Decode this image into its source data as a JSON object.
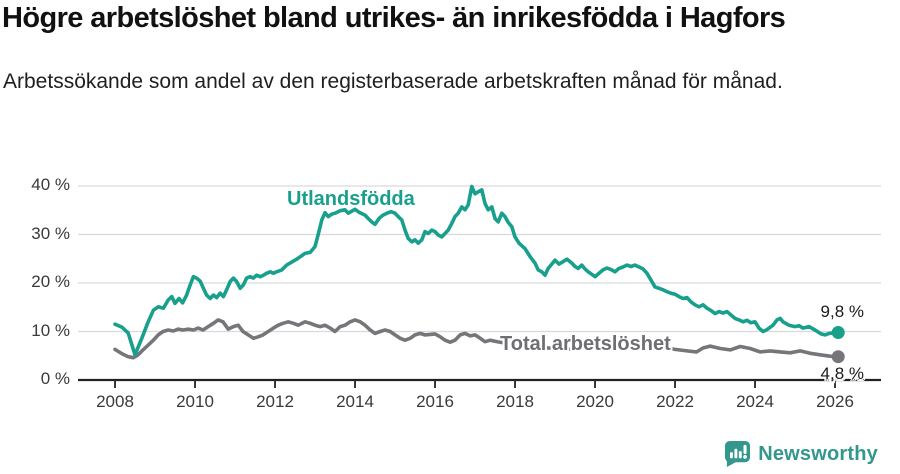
{
  "header": {
    "title": "Högre arbetslöshet bland utrikes- än inrikesfödda i Hagfors",
    "subtitle": "Arbetssökande som andel av den registerbaserade arbetskraften månad för månad."
  },
  "footer": {
    "brand": "Newsworthy"
  },
  "colors": {
    "teal": "#18A08D",
    "gray": "#76767A",
    "grid": "#D9D9D9",
    "axis": "#222222",
    "tick_text": "#3a3a3a",
    "logo_teal": "#33978E"
  },
  "chart_data": {
    "type": "line",
    "title": "Högre arbetslöshet bland utrikes- än inrikesfödda i Hagfors",
    "subtitle": "Arbetssökande som andel av den registerbaserade arbetskraften månad för månad.",
    "xlabel": "",
    "ylabel": "",
    "grid": "horizontal-only",
    "legend": "inline-series-labels",
    "xlim": [
      2007.9,
      2026.6
    ],
    "ylim": [
      0,
      41
    ],
    "x_tick_values": [
      2008,
      2010,
      2012,
      2014,
      2016,
      2018,
      2020,
      2022,
      2024,
      2026
    ],
    "x_tick_labels": [
      "2008",
      "2010",
      "2012",
      "2014",
      "2016",
      "2018",
      "2020",
      "2022",
      "2024",
      "2026"
    ],
    "y_tick_values": [
      0,
      10,
      20,
      30,
      40
    ],
    "y_tick_labels": [
      "0 %",
      "10 %",
      "20 %",
      "30 %",
      "40 %"
    ],
    "series": [
      {
        "name": "Utlandsfödda",
        "color": "#18A08D",
        "end_label": "9,8 %",
        "last_value": 9.8,
        "points": [
          [
            2008.0,
            11.5
          ],
          [
            2008.17,
            10.9
          ],
          [
            2008.33,
            9.7
          ],
          [
            2008.5,
            5.2
          ],
          [
            2008.67,
            8.6
          ],
          [
            2008.83,
            12.0
          ],
          [
            2008.96,
            14.4
          ],
          [
            2009.08,
            15.1
          ],
          [
            2009.21,
            14.8
          ],
          [
            2009.33,
            16.5
          ],
          [
            2009.42,
            17.2
          ],
          [
            2009.5,
            15.8
          ],
          [
            2009.6,
            16.8
          ],
          [
            2009.69,
            15.9
          ],
          [
            2009.79,
            17.5
          ],
          [
            2009.88,
            19.6
          ],
          [
            2009.96,
            21.3
          ],
          [
            2010.04,
            21.0
          ],
          [
            2010.13,
            20.4
          ],
          [
            2010.21,
            18.9
          ],
          [
            2010.29,
            17.5
          ],
          [
            2010.38,
            16.8
          ],
          [
            2010.46,
            17.5
          ],
          [
            2010.54,
            17.0
          ],
          [
            2010.63,
            17.9
          ],
          [
            2010.71,
            17.2
          ],
          [
            2010.79,
            18.6
          ],
          [
            2010.88,
            20.3
          ],
          [
            2010.96,
            21.0
          ],
          [
            2011.04,
            20.3
          ],
          [
            2011.13,
            18.9
          ],
          [
            2011.21,
            19.6
          ],
          [
            2011.29,
            21.0
          ],
          [
            2011.38,
            21.3
          ],
          [
            2011.46,
            21.0
          ],
          [
            2011.54,
            21.6
          ],
          [
            2011.63,
            21.3
          ],
          [
            2011.71,
            21.6
          ],
          [
            2011.79,
            22.0
          ],
          [
            2011.88,
            22.3
          ],
          [
            2011.96,
            22.0
          ],
          [
            2012.04,
            22.3
          ],
          [
            2012.17,
            22.7
          ],
          [
            2012.29,
            23.7
          ],
          [
            2012.42,
            24.3
          ],
          [
            2012.54,
            24.9
          ],
          [
            2012.63,
            25.4
          ],
          [
            2012.75,
            26.1
          ],
          [
            2012.88,
            26.3
          ],
          [
            2013.0,
            27.5
          ],
          [
            2013.08,
            30.0
          ],
          [
            2013.17,
            33.0
          ],
          [
            2013.25,
            34.5
          ],
          [
            2013.33,
            33.7
          ],
          [
            2013.42,
            34.2
          ],
          [
            2013.5,
            34.4
          ],
          [
            2013.63,
            34.9
          ],
          [
            2013.75,
            35.1
          ],
          [
            2013.83,
            34.4
          ],
          [
            2013.92,
            34.8
          ],
          [
            2014.0,
            35.2
          ],
          [
            2014.1,
            34.6
          ],
          [
            2014.25,
            34.0
          ],
          [
            2014.33,
            33.3
          ],
          [
            2014.42,
            32.6
          ],
          [
            2014.5,
            32.1
          ],
          [
            2014.6,
            33.3
          ],
          [
            2014.7,
            34.0
          ],
          [
            2014.8,
            34.4
          ],
          [
            2014.9,
            34.7
          ],
          [
            2015.0,
            34.4
          ],
          [
            2015.08,
            33.7
          ],
          [
            2015.17,
            33.0
          ],
          [
            2015.25,
            30.9
          ],
          [
            2015.33,
            29.2
          ],
          [
            2015.42,
            28.5
          ],
          [
            2015.5,
            28.9
          ],
          [
            2015.58,
            28.2
          ],
          [
            2015.67,
            28.9
          ],
          [
            2015.75,
            30.6
          ],
          [
            2015.83,
            30.2
          ],
          [
            2015.92,
            30.9
          ],
          [
            2016.0,
            30.6
          ],
          [
            2016.08,
            29.9
          ],
          [
            2016.17,
            29.5
          ],
          [
            2016.25,
            30.2
          ],
          [
            2016.33,
            30.9
          ],
          [
            2016.42,
            32.3
          ],
          [
            2016.5,
            33.7
          ],
          [
            2016.58,
            34.4
          ],
          [
            2016.67,
            35.7
          ],
          [
            2016.75,
            35.1
          ],
          [
            2016.83,
            36.1
          ],
          [
            2016.92,
            39.9
          ],
          [
            2017.0,
            38.4
          ],
          [
            2017.08,
            38.8
          ],
          [
            2017.17,
            39.2
          ],
          [
            2017.25,
            36.4
          ],
          [
            2017.33,
            35.1
          ],
          [
            2017.42,
            35.7
          ],
          [
            2017.5,
            33.3
          ],
          [
            2017.58,
            32.6
          ],
          [
            2017.67,
            34.4
          ],
          [
            2017.75,
            33.7
          ],
          [
            2017.83,
            32.5
          ],
          [
            2017.92,
            31.6
          ],
          [
            2018.0,
            29.5
          ],
          [
            2018.1,
            28.2
          ],
          [
            2018.25,
            27.1
          ],
          [
            2018.38,
            25.4
          ],
          [
            2018.5,
            24.1
          ],
          [
            2018.58,
            22.7
          ],
          [
            2018.67,
            22.3
          ],
          [
            2018.75,
            21.6
          ],
          [
            2018.83,
            23.0
          ],
          [
            2018.92,
            23.9
          ],
          [
            2019.0,
            24.7
          ],
          [
            2019.1,
            23.9
          ],
          [
            2019.2,
            24.4
          ],
          [
            2019.3,
            24.9
          ],
          [
            2019.42,
            24.1
          ],
          [
            2019.5,
            23.4
          ],
          [
            2019.58,
            23.0
          ],
          [
            2019.67,
            23.7
          ],
          [
            2019.75,
            22.9
          ],
          [
            2019.83,
            22.3
          ],
          [
            2019.92,
            21.8
          ],
          [
            2020.0,
            21.3
          ],
          [
            2020.1,
            22.0
          ],
          [
            2020.2,
            22.7
          ],
          [
            2020.3,
            23.1
          ],
          [
            2020.42,
            22.7
          ],
          [
            2020.5,
            22.3
          ],
          [
            2020.6,
            23.0
          ],
          [
            2020.7,
            23.3
          ],
          [
            2020.8,
            23.7
          ],
          [
            2020.9,
            23.4
          ],
          [
            2021.0,
            23.7
          ],
          [
            2021.1,
            23.3
          ],
          [
            2021.2,
            22.9
          ],
          [
            2021.3,
            22.0
          ],
          [
            2021.4,
            20.6
          ],
          [
            2021.5,
            19.2
          ],
          [
            2021.6,
            18.9
          ],
          [
            2021.7,
            18.6
          ],
          [
            2021.8,
            18.2
          ],
          [
            2021.9,
            17.9
          ],
          [
            2022.0,
            17.7
          ],
          [
            2022.1,
            17.2
          ],
          [
            2022.2,
            16.8
          ],
          [
            2022.3,
            17.0
          ],
          [
            2022.4,
            16.1
          ],
          [
            2022.5,
            15.5
          ],
          [
            2022.6,
            15.1
          ],
          [
            2022.7,
            15.5
          ],
          [
            2022.8,
            14.8
          ],
          [
            2022.9,
            14.3
          ],
          [
            2023.0,
            13.7
          ],
          [
            2023.1,
            14.1
          ],
          [
            2023.2,
            13.8
          ],
          [
            2023.3,
            14.1
          ],
          [
            2023.4,
            13.4
          ],
          [
            2023.5,
            12.7
          ],
          [
            2023.6,
            12.4
          ],
          [
            2023.7,
            12.0
          ],
          [
            2023.8,
            12.3
          ],
          [
            2023.9,
            11.8
          ],
          [
            2024.0,
            12.0
          ],
          [
            2024.1,
            10.7
          ],
          [
            2024.2,
            10.0
          ],
          [
            2024.3,
            10.4
          ],
          [
            2024.45,
            11.3
          ],
          [
            2024.55,
            12.4
          ],
          [
            2024.63,
            12.7
          ],
          [
            2024.7,
            12.0
          ],
          [
            2024.85,
            11.3
          ],
          [
            2025.0,
            11.0
          ],
          [
            2025.1,
            11.2
          ],
          [
            2025.2,
            10.7
          ],
          [
            2025.35,
            11.0
          ],
          [
            2025.5,
            10.3
          ],
          [
            2025.65,
            9.5
          ],
          [
            2025.75,
            9.3
          ],
          [
            2025.85,
            9.6
          ],
          [
            2025.95,
            9.7
          ],
          [
            2026.08,
            9.8
          ]
        ]
      },
      {
        "name": "Total arbetslöshet",
        "color": "#76767A",
        "end_label": "4,8 %",
        "last_value": 4.8,
        "points": [
          [
            2008.0,
            6.3
          ],
          [
            2008.1,
            5.8
          ],
          [
            2008.2,
            5.3
          ],
          [
            2008.33,
            4.8
          ],
          [
            2008.46,
            4.6
          ],
          [
            2008.58,
            5.2
          ],
          [
            2008.7,
            6.2
          ],
          [
            2008.83,
            7.2
          ],
          [
            2008.96,
            8.2
          ],
          [
            2009.08,
            9.3
          ],
          [
            2009.2,
            10.0
          ],
          [
            2009.33,
            10.3
          ],
          [
            2009.46,
            10.1
          ],
          [
            2009.58,
            10.5
          ],
          [
            2009.7,
            10.3
          ],
          [
            2009.83,
            10.5
          ],
          [
            2009.96,
            10.3
          ],
          [
            2010.08,
            10.7
          ],
          [
            2010.2,
            10.3
          ],
          [
            2010.33,
            11.0
          ],
          [
            2010.46,
            11.7
          ],
          [
            2010.58,
            12.4
          ],
          [
            2010.7,
            12.0
          ],
          [
            2010.83,
            10.5
          ],
          [
            2010.96,
            11.0
          ],
          [
            2011.08,
            11.3
          ],
          [
            2011.2,
            10.0
          ],
          [
            2011.33,
            9.3
          ],
          [
            2011.46,
            8.6
          ],
          [
            2011.58,
            8.9
          ],
          [
            2011.7,
            9.3
          ],
          [
            2011.83,
            10.0
          ],
          [
            2011.96,
            10.7
          ],
          [
            2012.08,
            11.3
          ],
          [
            2012.2,
            11.7
          ],
          [
            2012.33,
            12.0
          ],
          [
            2012.46,
            11.7
          ],
          [
            2012.58,
            11.3
          ],
          [
            2012.75,
            12.0
          ],
          [
            2012.88,
            11.7
          ],
          [
            2013.0,
            11.3
          ],
          [
            2013.13,
            11.0
          ],
          [
            2013.25,
            11.3
          ],
          [
            2013.38,
            10.7
          ],
          [
            2013.5,
            10.0
          ],
          [
            2013.63,
            11.0
          ],
          [
            2013.75,
            11.3
          ],
          [
            2013.88,
            12.0
          ],
          [
            2014.0,
            12.4
          ],
          [
            2014.13,
            12.0
          ],
          [
            2014.25,
            11.3
          ],
          [
            2014.38,
            10.3
          ],
          [
            2014.5,
            9.6
          ],
          [
            2014.63,
            10.0
          ],
          [
            2014.75,
            10.3
          ],
          [
            2014.88,
            10.0
          ],
          [
            2015.0,
            9.3
          ],
          [
            2015.13,
            8.6
          ],
          [
            2015.25,
            8.2
          ],
          [
            2015.38,
            8.6
          ],
          [
            2015.5,
            9.3
          ],
          [
            2015.63,
            9.6
          ],
          [
            2015.75,
            9.3
          ],
          [
            2015.88,
            9.4
          ],
          [
            2016.0,
            9.5
          ],
          [
            2016.13,
            8.9
          ],
          [
            2016.25,
            8.2
          ],
          [
            2016.38,
            7.8
          ],
          [
            2016.5,
            8.2
          ],
          [
            2016.63,
            9.3
          ],
          [
            2016.75,
            9.6
          ],
          [
            2016.88,
            9.1
          ],
          [
            2017.0,
            9.3
          ],
          [
            2017.13,
            8.6
          ],
          [
            2017.25,
            7.9
          ],
          [
            2017.38,
            8.2
          ],
          [
            2017.5,
            8.0
          ],
          [
            2017.75,
            7.6
          ],
          [
            2018.0,
            7.2
          ],
          [
            2018.5,
            6.8
          ],
          [
            2019.0,
            6.5
          ],
          [
            2019.5,
            6.3
          ],
          [
            2020.0,
            6.8
          ],
          [
            2020.33,
            8.0
          ],
          [
            2020.67,
            8.2
          ],
          [
            2021.0,
            7.8
          ],
          [
            2021.5,
            7.0
          ],
          [
            2022.0,
            6.3
          ],
          [
            2022.3,
            6.0
          ],
          [
            2022.54,
            5.8
          ],
          [
            2022.7,
            6.6
          ],
          [
            2022.88,
            7.0
          ],
          [
            2023.13,
            6.5
          ],
          [
            2023.38,
            6.2
          ],
          [
            2023.63,
            6.9
          ],
          [
            2023.88,
            6.5
          ],
          [
            2024.13,
            5.8
          ],
          [
            2024.38,
            6.0
          ],
          [
            2024.63,
            5.8
          ],
          [
            2024.88,
            5.6
          ],
          [
            2025.13,
            6.0
          ],
          [
            2025.38,
            5.5
          ],
          [
            2025.63,
            5.2
          ],
          [
            2025.88,
            4.9
          ],
          [
            2026.08,
            4.8
          ]
        ]
      }
    ]
  }
}
